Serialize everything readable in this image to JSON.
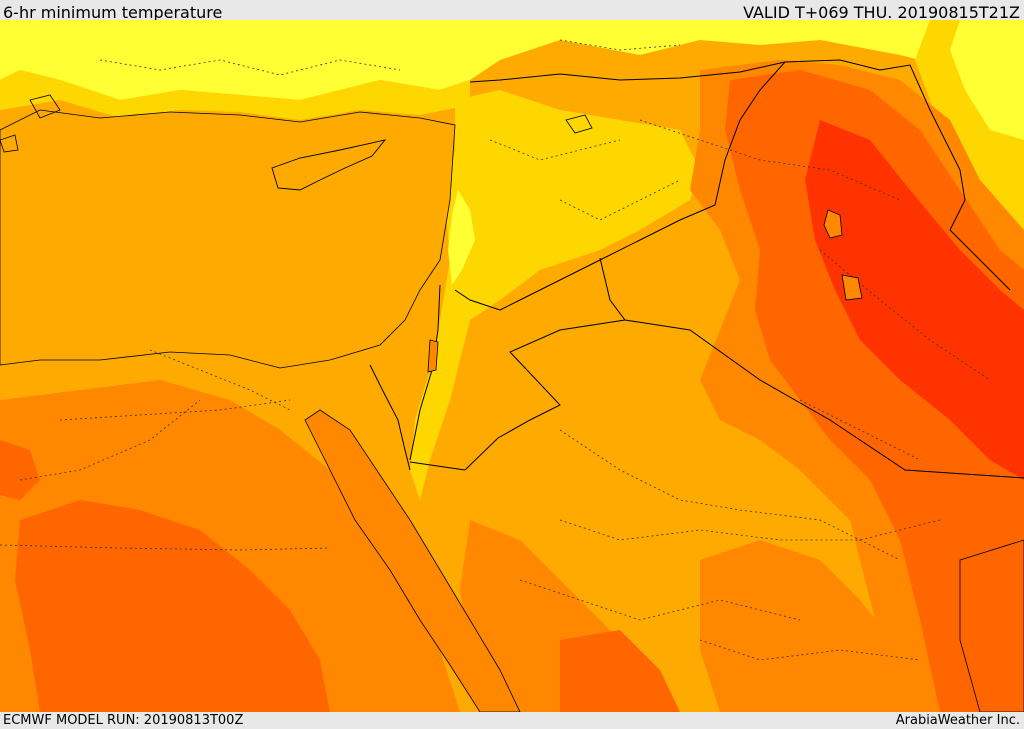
{
  "header": {
    "title": "6-hr minimum temperature",
    "valid": "VALID T+069 THU. 20190815T21Z"
  },
  "footer": {
    "model_run": "ECMWF MODEL RUN: 20190813T00Z",
    "credit": "ArabiaWeather Inc."
  },
  "colors": {
    "band_coolest": "#ffff33",
    "band_cool": "#ffd700",
    "band_mild": "#ffaa00",
    "band_warm": "#ff8800",
    "band_hot": "#ff6600",
    "band_hottest": "#ff3300",
    "border_line": "#000000"
  }
}
